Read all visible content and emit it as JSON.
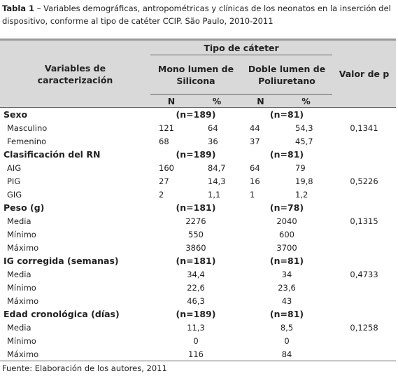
{
  "caption": {
    "label": "Tabla 1",
    "text": "– Variables demográficas, antropométricas y clínicas de los neonatos en la inserción del dispositivo, conforme al tipo de catéter CCIP. São Paulo, 2010-2011"
  },
  "table": {
    "header": {
      "variables": "Variables de caracterización",
      "group": "Tipo de cáteter",
      "columns": [
        "Mono lumen de Silicona",
        "Doble lumen de Poliuretano"
      ],
      "p": "Valor de p",
      "sub": [
        "N",
        "%",
        "N",
        "%"
      ]
    },
    "sections": [
      {
        "title": "Sexo",
        "n": [
          "(n=189)",
          "(n=81)"
        ],
        "rows": [
          {
            "label": "Masculino",
            "values": [
              "121",
              "64",
              "44",
              "54,3"
            ],
            "p": "0,1341"
          },
          {
            "label": "Femenino",
            "values": [
              "68",
              "36",
              "37",
              "45,7"
            ]
          }
        ]
      },
      {
        "title": "Clasificación del RN",
        "n": [
          "(n=189)",
          "(n=81)"
        ],
        "rows": [
          {
            "label": "AIG",
            "values": [
              "160",
              "84,7",
              "64",
              "79"
            ]
          },
          {
            "label": "PIG",
            "values": [
              "27",
              "14,3",
              "16",
              "19,8"
            ],
            "p": "0,5226"
          },
          {
            "label": "GIG",
            "values": [
              "2",
              "1,1",
              "1",
              "1,2"
            ]
          }
        ]
      },
      {
        "title": "Peso (g)",
        "n": [
          "(n=181)",
          "(n=78)"
        ],
        "rows": [
          {
            "label": "Media",
            "values": [
              "2276",
              "2040"
            ],
            "p": "0,1315"
          },
          {
            "label": "Mínimo",
            "values": [
              "550",
              "600"
            ]
          },
          {
            "label": "Máximo",
            "values": [
              "3860",
              "3700"
            ]
          }
        ]
      },
      {
        "title": "IG corregida (semanas)",
        "n": [
          "(n=181)",
          "(n=81)"
        ],
        "rows": [
          {
            "label": "Media",
            "values": [
              "34,4",
              "34"
            ],
            "p": "0,4733"
          },
          {
            "label": "Mínimo",
            "values": [
              "22,6",
              "23,6"
            ]
          },
          {
            "label": "Máximo",
            "values": [
              "46,3",
              "43"
            ]
          }
        ]
      },
      {
        "title": "Edad cronológica (días)",
        "n": [
          "(n=189)",
          "(n=81)"
        ],
        "rows": [
          {
            "label": "Media",
            "values": [
              "11,3",
              "8,5"
            ],
            "p": "0,1258"
          },
          {
            "label": "Mínimo",
            "values": [
              "0",
              "0"
            ]
          },
          {
            "label": "Máximo",
            "values": [
              "116",
              "84"
            ]
          }
        ]
      }
    ]
  },
  "footer": "Fuente: Elaboración de los autores, 2011"
}
